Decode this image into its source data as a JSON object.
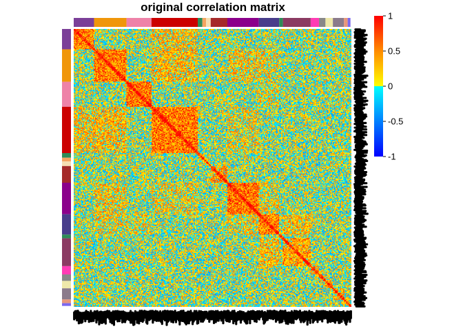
{
  "chart_data": {
    "type": "heatmap",
    "title": "original correlation matrix",
    "xlabel": "",
    "ylabel": "",
    "n_variables": 300,
    "value_range": [
      -1,
      1
    ],
    "legend": {
      "placement": "right",
      "ticks": [
        {
          "value": 1,
          "label": "1"
        },
        {
          "value": 0.5,
          "label": "0.5"
        },
        {
          "value": 0,
          "label": "0"
        },
        {
          "value": -0.5,
          "label": "-0.5"
        },
        {
          "value": -1,
          "label": "-1"
        }
      ],
      "colors": {
        "neg_low": "#0000ff",
        "neg_high": "#00ffff",
        "pos_low": "#ffff00",
        "pos_mid": "#ff8c00",
        "pos_high": "#ff0000"
      }
    },
    "groups": [
      {
        "size": 22,
        "color": "#7b3f98",
        "within_corr": 0.5
      },
      {
        "size": 35,
        "color": "#f0960a",
        "within_corr": 0.55
      },
      {
        "size": 27,
        "color": "#ee82a8",
        "within_corr": 0.6
      },
      {
        "size": 50,
        "color": "#cc0000",
        "within_corr": 0.55
      },
      {
        "size": 5,
        "color": "#2e8b57",
        "within_corr": 0.2
      },
      {
        "size": 4,
        "color": "#f4a460",
        "within_corr": 0.2
      },
      {
        "size": 5,
        "color": "#f5deb3",
        "within_corr": 0.2
      },
      {
        "size": 18,
        "color": "#a52a2a",
        "within_corr": 0.4
      },
      {
        "size": 34,
        "color": "#8b008b",
        "within_corr": 0.6
      },
      {
        "size": 22,
        "color": "#483d8b",
        "within_corr": 0.5
      },
      {
        "size": 4,
        "color": "#2e8b57",
        "within_corr": 0.2
      },
      {
        "size": 30,
        "color": "#8b3a62",
        "within_corr": 0.4
      },
      {
        "size": 9,
        "color": "#ff3cb4",
        "within_corr": 0.3
      },
      {
        "size": 7,
        "color": "#888888",
        "within_corr": 0.3
      },
      {
        "size": 8,
        "color": "#eee8aa",
        "within_corr": 0.3
      },
      {
        "size": 12,
        "color": "#8b7b8b",
        "within_corr": 0.3
      },
      {
        "size": 4,
        "color": "#e9967a",
        "within_corr": 0.2
      },
      {
        "size": 3,
        "color": "#7b68ee",
        "within_corr": 0.2
      }
    ],
    "group_cross_corr": [
      [
        0,
        3,
        0.25
      ],
      [
        1,
        3,
        0.3
      ],
      [
        1,
        8,
        0.25
      ],
      [
        2,
        9,
        0.2
      ],
      [
        3,
        8,
        0.2
      ],
      [
        8,
        9,
        0.2
      ],
      [
        9,
        11,
        0.3
      ],
      [
        1,
        9,
        0.2
      ]
    ],
    "diagonal": 1
  }
}
